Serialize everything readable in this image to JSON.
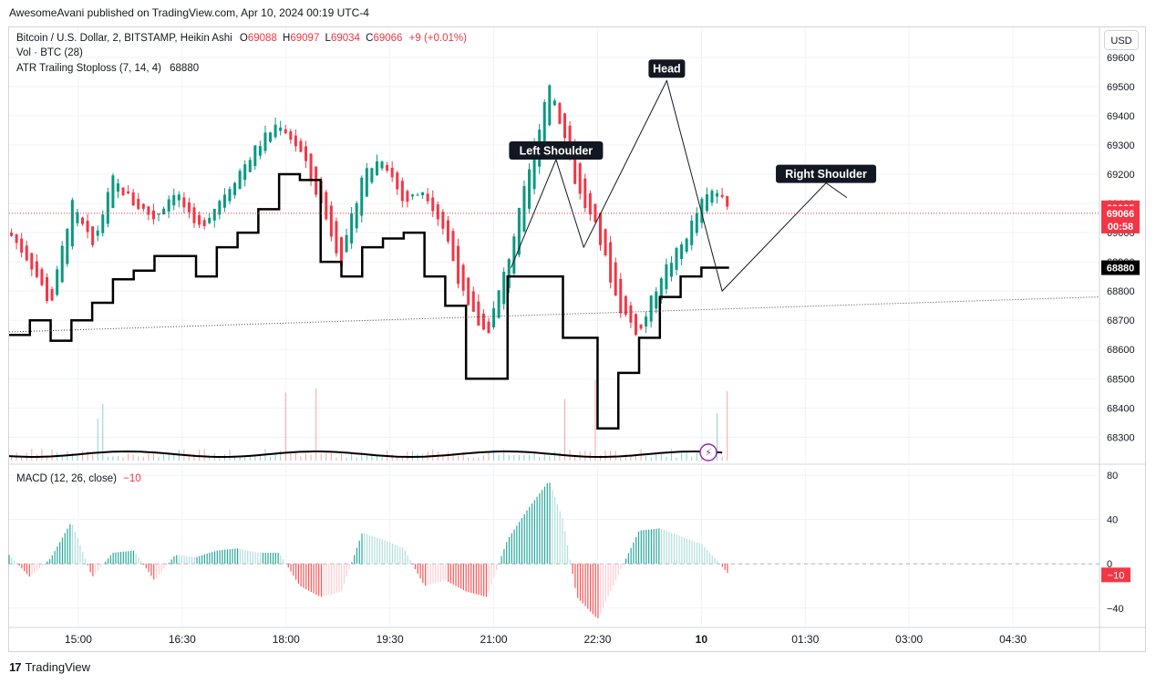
{
  "published_line": "AwesomeAvani published on TradingView.com, Apr 10, 2024 00:19 UTC-4",
  "legend": {
    "symbol": "Bitcoin / U.S. Dollar, 2, BITSTAMP, Heikin Ashi",
    "o_label": "O",
    "o_value": "69088",
    "h_label": "H",
    "h_value": "69097",
    "l_label": "L",
    "l_value": "69034",
    "c_label": "C",
    "c_value": "69066",
    "change": "+9 (+0.01%)",
    "vol": "Vol · BTC (28)",
    "atr": "ATR Trailing Stoploss (7, 14, 4)",
    "atr_value": "68880",
    "macd": "MACD (12, 26, close)",
    "macd_value": "−10"
  },
  "currency_button": "USD",
  "footer_brand": "TradingView",
  "colors": {
    "up": "#089981",
    "down": "#f23645",
    "line": "#000000",
    "grid": "#f0f3fa"
  },
  "chart_data": [
    {
      "type": "line",
      "title": "Bitcoin / U.S. Dollar, 2, BITSTAMP, Heikin Ashi",
      "y_ticks": [
        68300,
        68400,
        68500,
        68600,
        68700,
        68800,
        68900,
        69000,
        69100,
        69200,
        69300,
        69400,
        69500,
        69600
      ],
      "x_ticks": [
        "15:00",
        "16:30",
        "18:00",
        "19:30",
        "21:00",
        "22:30",
        "10",
        "01:30",
        "03:00",
        "04:30"
      ],
      "ylim": [
        68220,
        69640
      ],
      "price_labels": [
        {
          "label": "69085",
          "value": 69085,
          "color": "#f23645"
        },
        {
          "label": "69066",
          "value": 69066,
          "color": "#f23645"
        },
        {
          "label": "00:58",
          "value": 69025,
          "color": "#f23645"
        },
        {
          "label": "68880",
          "value": 68880,
          "color": "#000000"
        }
      ],
      "annotations": [
        {
          "text": "Left Shoulder",
          "x": 21.9,
          "y": 69250
        },
        {
          "text": "Head",
          "x": 23.5,
          "y": 69530
        },
        {
          "text": "Right Shoulder",
          "x": 25.8,
          "y": 69170
        }
      ],
      "series": [
        {
          "name": "Heikin Ashi close",
          "x": [
            14.0,
            14.3,
            14.6,
            14.9,
            15.2,
            15.5,
            15.8,
            16.1,
            16.4,
            16.7,
            17.0,
            17.3,
            17.6,
            17.9,
            18.2,
            18.5,
            18.8,
            19.1,
            19.4,
            19.7,
            20.0,
            20.3,
            20.6,
            20.9,
            21.2,
            21.5,
            21.8,
            22.0,
            22.2,
            22.5,
            22.8,
            23.1,
            23.4,
            23.7,
            24.0,
            24.2,
            24.4
          ],
          "values": [
            69000,
            68900,
            68750,
            69100,
            68950,
            69180,
            69100,
            69050,
            69150,
            69000,
            69100,
            69200,
            69300,
            69380,
            69280,
            69100,
            68900,
            69200,
            69260,
            69100,
            69150,
            69000,
            68750,
            68650,
            68900,
            69200,
            69520,
            69350,
            69150,
            69000,
            68750,
            68650,
            68850,
            68950,
            69100,
            69150,
            69066
          ]
        },
        {
          "name": "ATR Trailing Stoploss",
          "x": [
            14.0,
            14.3,
            14.6,
            14.9,
            15.2,
            15.5,
            15.8,
            16.1,
            16.4,
            16.7,
            17.0,
            17.3,
            17.6,
            17.9,
            18.2,
            18.5,
            18.8,
            19.1,
            19.4,
            19.7,
            20.0,
            20.3,
            20.6,
            20.9,
            21.2,
            21.5,
            21.8,
            22.0,
            22.2,
            22.5,
            22.8,
            23.1,
            23.4,
            23.7,
            24.0,
            24.2,
            24.4
          ],
          "values": [
            68650,
            68700,
            68630,
            68700,
            68760,
            68840,
            68870,
            68920,
            68920,
            68850,
            68950,
            69000,
            69080,
            69200,
            69180,
            68900,
            68850,
            68950,
            68980,
            69000,
            68850,
            68750,
            68500,
            68500,
            68850,
            68850,
            68850,
            68640,
            68640,
            68330,
            68520,
            68640,
            68780,
            68850,
            68880,
            68880,
            68880
          ]
        }
      ]
    },
    {
      "type": "bar",
      "title": "MACD (12, 26, close)",
      "y_ticks": [
        -40,
        0,
        40,
        80
      ],
      "ylim": [
        -55,
        85
      ],
      "last_value_label": "−10",
      "series": [
        {
          "name": "MACD histogram",
          "x": [
            14.0,
            14.3,
            14.6,
            14.9,
            15.2,
            15.5,
            15.8,
            16.1,
            16.4,
            16.7,
            17.0,
            17.3,
            17.6,
            17.9,
            18.2,
            18.5,
            18.8,
            19.1,
            19.4,
            19.7,
            20.0,
            20.3,
            20.6,
            20.9,
            21.2,
            21.5,
            21.8,
            22.0,
            22.2,
            22.5,
            22.8,
            23.1,
            23.4,
            23.7,
            24.0,
            24.2,
            24.4
          ],
          "values": [
            8,
            -12,
            5,
            38,
            -12,
            10,
            12,
            -15,
            8,
            6,
            12,
            14,
            10,
            10,
            -20,
            -30,
            -25,
            28,
            22,
            14,
            -20,
            -15,
            -25,
            -30,
            22,
            50,
            75,
            40,
            -30,
            -50,
            -10,
            30,
            32,
            25,
            18,
            5,
            -10
          ]
        }
      ]
    }
  ]
}
